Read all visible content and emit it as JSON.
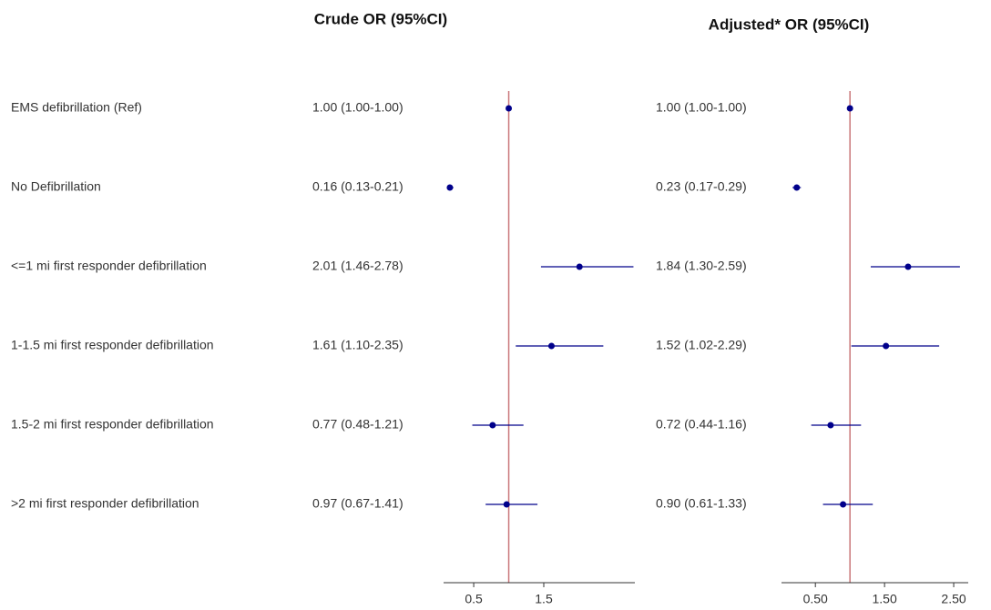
{
  "chart_data": [
    {
      "type": "forest",
      "title": "Crude OR (95%CI)",
      "categories": [
        "EMS defibrillation (Ref)",
        "No Defibrillation",
        "<=1 mi first responder defibrillation",
        "1-1.5 mi first responder defibrillation",
        "1.5-2 mi first responder defibrillation",
        ">2 mi first responder defibrillation"
      ],
      "values": [
        1.0,
        0.16,
        2.01,
        1.61,
        0.77,
        0.97
      ],
      "lower": [
        1.0,
        0.13,
        1.46,
        1.1,
        0.48,
        0.67
      ],
      "upper": [
        1.0,
        0.21,
        2.78,
        2.35,
        1.21,
        1.41
      ],
      "value_labels": [
        "1.00 (1.00-1.00)",
        "0.16 (0.13-0.21)",
        "2.01 (1.46-2.78)",
        "1.61 (1.10-2.35)",
        "0.77 (0.48-1.21)",
        "0.97 (0.67-1.41)"
      ],
      "xlim": [
        0.07,
        2.8
      ],
      "xticks": [
        0.5,
        1.5
      ],
      "ref_line": 1,
      "color": "#00008b",
      "ref_color": "#c9777a"
    },
    {
      "type": "forest",
      "title": "Adjusted* OR (95%CI)",
      "values": [
        1.0,
        0.23,
        1.84,
        1.52,
        0.72,
        0.9
      ],
      "lower": [
        1.0,
        0.17,
        1.3,
        1.02,
        0.44,
        0.61
      ],
      "upper": [
        1.0,
        0.29,
        2.59,
        2.29,
        1.16,
        1.33
      ],
      "value_labels": [
        "1.00 (1.00-1.00)",
        "0.23 (0.17-0.29)",
        "1.84 (1.30-2.59)",
        "1.52 (1.02-2.29)",
        "0.72 (0.44-1.16)",
        "0.90 (0.61-1.33)"
      ],
      "xlim": [
        0.01,
        2.71
      ],
      "xticks": [
        {
          "value": 0.5,
          "label": "0.50"
        },
        {
          "value": 1.5,
          "label": "1.50"
        },
        {
          "value": 2.5,
          "label": "2.50"
        }
      ],
      "ref_line": 1,
      "color": "#00008b",
      "ref_color": "#c9777a"
    }
  ]
}
